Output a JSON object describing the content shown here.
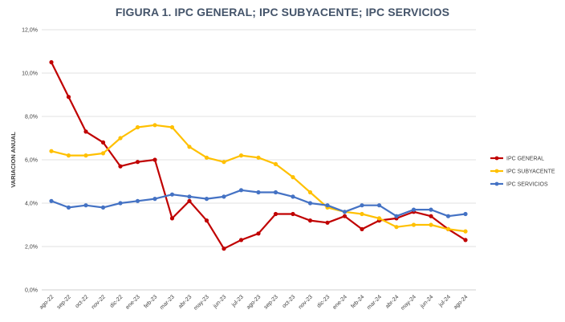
{
  "chart_data": {
    "type": "line",
    "title": "FIGURA 1. IPC GENERAL; IPC SUBYACENTE; IPC SERVICIOS",
    "xlabel": "",
    "ylabel": "VARIACION ANUAL",
    "ylim": [
      0,
      12
    ],
    "y_ticks": [
      "0,0%",
      "2,0%",
      "4,0%",
      "6,0%",
      "8,0%",
      "10,0%",
      "12,0%"
    ],
    "grid": true,
    "legend_position": "right",
    "categories": [
      "ago-22",
      "sep-22",
      "oct-22",
      "nov-22",
      "dic-22",
      "ene-23",
      "feb-23",
      "mar-23",
      "abr-23",
      "may-23",
      "jun-23",
      "jul-23",
      "ago-23",
      "sep-23",
      "oct-23",
      "nov-23",
      "dic-23",
      "ene-24",
      "feb-24",
      "mar-24",
      "abr-24",
      "may-24",
      "jun-24",
      "jul-24",
      "ago-24"
    ],
    "series": [
      {
        "name": "IPC GENERAL",
        "color": "#c00000",
        "values": [
          10.5,
          8.9,
          7.3,
          6.8,
          5.7,
          5.9,
          6.0,
          3.3,
          4.1,
          3.2,
          1.9,
          2.3,
          2.6,
          3.5,
          3.5,
          3.2,
          3.1,
          3.4,
          2.8,
          3.2,
          3.3,
          3.6,
          3.4,
          2.8,
          2.3
        ]
      },
      {
        "name": "IPC SUBYACENTE",
        "color": "#ffc000",
        "values": [
          6.4,
          6.2,
          6.2,
          6.3,
          7.0,
          7.5,
          7.6,
          7.5,
          6.6,
          6.1,
          5.9,
          6.2,
          6.1,
          5.8,
          5.2,
          4.5,
          3.8,
          3.6,
          3.5,
          3.3,
          2.9,
          3.0,
          3.0,
          2.8,
          2.7
        ]
      },
      {
        "name": "IPC SERVICIOS",
        "color": "#4472c4",
        "values": [
          4.1,
          3.8,
          3.9,
          3.8,
          4.0,
          4.1,
          4.2,
          4.4,
          4.3,
          4.2,
          4.3,
          4.6,
          4.5,
          4.5,
          4.3,
          4.0,
          3.9,
          3.6,
          3.9,
          3.9,
          3.4,
          3.7,
          3.7,
          3.4,
          3.5
        ]
      }
    ]
  }
}
